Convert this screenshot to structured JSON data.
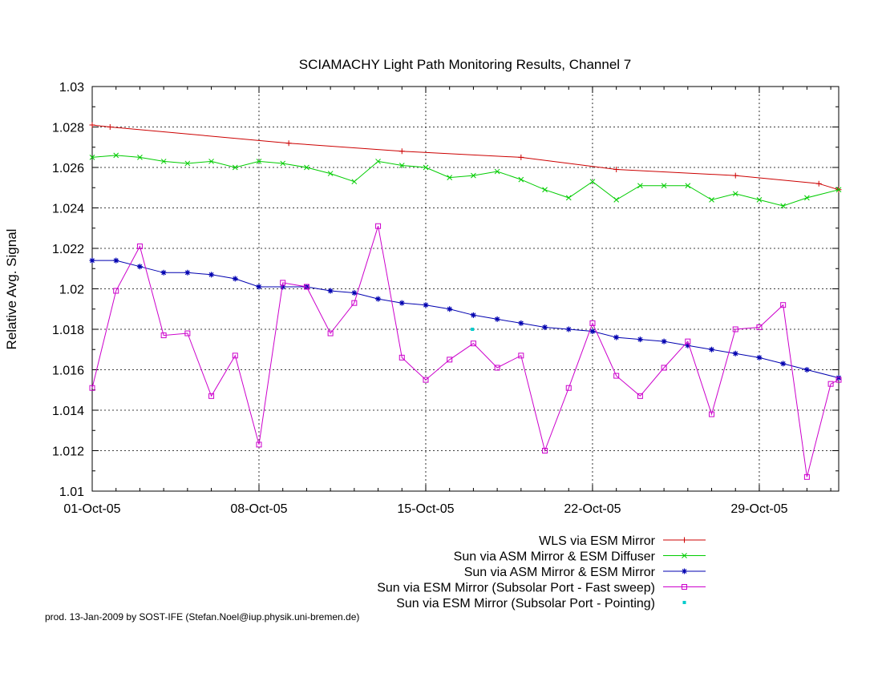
{
  "footer": "prod. 13-Jan-2009 by SOST-IFE (Stefan.Noel@iup.physik.uni-bremen.de)",
  "chart_data": {
    "type": "line",
    "title": "SCIAMACHY Light Path Monitoring Results, Channel 7",
    "xlabel": "",
    "ylabel": "Relative Avg. Signal",
    "xlim": [
      "2005-10-01",
      "2005-11-01 08:00"
    ],
    "ylim": [
      1.01,
      1.03
    ],
    "yticks": [
      1.01,
      1.012,
      1.014,
      1.016,
      1.018,
      1.02,
      1.022,
      1.024,
      1.026,
      1.028,
      1.03
    ],
    "ytick_labels": [
      "1.01",
      "1.012",
      "1.014",
      "1.016",
      "1.018",
      "1.02",
      "1.022",
      "1.024",
      "1.026",
      "1.028",
      "1.03"
    ],
    "xticks": [
      "2005-10-01",
      "2005-10-08",
      "2005-10-15",
      "2005-10-22",
      "2005-10-29"
    ],
    "xtick_labels": [
      "01-Oct-05",
      "08-Oct-05",
      "15-Oct-05",
      "22-Oct-05",
      "29-Oct-05"
    ],
    "grid": true,
    "legend_position": "below-right",
    "series": [
      {
        "name": "WLS via ESM Mirror",
        "color": "#cc0000",
        "marker": "plus",
        "x": [
          "2005-10-01",
          "2005-10-01 18:00",
          "2005-10-09 06:00",
          "2005-10-14 00:00",
          "2005-10-19 00:00",
          "2005-10-23 00:00",
          "2005-10-28 00:00",
          "2005-10-31 12:00",
          "2005-11-01 08:00"
        ],
        "values": [
          1.0281,
          1.028,
          1.0272,
          1.0268,
          1.0265,
          1.0259,
          1.0256,
          1.0252,
          1.0249
        ]
      },
      {
        "name": "Sun via ASM Mirror & ESM Diffuser",
        "color": "#00cc00",
        "marker": "x",
        "x": [
          "2005-10-01",
          "2005-10-02",
          "2005-10-03",
          "2005-10-04",
          "2005-10-05",
          "2005-10-06",
          "2005-10-07",
          "2005-10-08",
          "2005-10-09",
          "2005-10-10",
          "2005-10-11",
          "2005-10-12",
          "2005-10-13",
          "2005-10-14",
          "2005-10-15",
          "2005-10-16",
          "2005-10-17",
          "2005-10-18",
          "2005-10-19",
          "2005-10-20",
          "2005-10-21",
          "2005-10-22",
          "2005-10-23",
          "2005-10-24",
          "2005-10-25",
          "2005-10-26",
          "2005-10-27",
          "2005-10-28",
          "2005-10-29",
          "2005-10-30",
          "2005-10-31",
          "2005-11-01 08:00"
        ],
        "values": [
          1.0265,
          1.0266,
          1.0265,
          1.0263,
          1.0262,
          1.0263,
          1.026,
          1.0263,
          1.0262,
          1.026,
          1.0257,
          1.0253,
          1.0263,
          1.0261,
          1.026,
          1.0255,
          1.0256,
          1.0258,
          1.0254,
          1.0249,
          1.0245,
          1.0253,
          1.0244,
          1.0251,
          1.0251,
          1.0251,
          1.0244,
          1.0247,
          1.0244,
          1.0241,
          1.0245,
          1.0249
        ]
      },
      {
        "name": "Sun via ASM Mirror & ESM Mirror",
        "color": "#0000b0",
        "marker": "star",
        "x": [
          "2005-10-01",
          "2005-10-02",
          "2005-10-03",
          "2005-10-04",
          "2005-10-05",
          "2005-10-06",
          "2005-10-07",
          "2005-10-08",
          "2005-10-09",
          "2005-10-10",
          "2005-10-11",
          "2005-10-12",
          "2005-10-13",
          "2005-10-14",
          "2005-10-15",
          "2005-10-16",
          "2005-10-17",
          "2005-10-18",
          "2005-10-19",
          "2005-10-20",
          "2005-10-21",
          "2005-10-22",
          "2005-10-23",
          "2005-10-24",
          "2005-10-25",
          "2005-10-26",
          "2005-10-27",
          "2005-10-28",
          "2005-10-29",
          "2005-10-30",
          "2005-10-31",
          "2005-11-01 08:00"
        ],
        "values": [
          1.0214,
          1.0214,
          1.0211,
          1.0208,
          1.0208,
          1.0207,
          1.0205,
          1.0201,
          1.0201,
          1.0201,
          1.0199,
          1.0198,
          1.0195,
          1.0193,
          1.0192,
          1.019,
          1.0187,
          1.0185,
          1.0183,
          1.0181,
          1.018,
          1.0179,
          1.0176,
          1.0175,
          1.0174,
          1.0172,
          1.017,
          1.0168,
          1.0166,
          1.0163,
          1.016,
          1.0156
        ]
      },
      {
        "name": "Sun via ESM Mirror (Subsolar Port - Fast sweep)",
        "color": "#cc00cc",
        "marker": "square",
        "x": [
          "2005-10-01",
          "2005-10-02",
          "2005-10-03",
          "2005-10-04",
          "2005-10-05",
          "2005-10-06",
          "2005-10-07",
          "2005-10-08",
          "2005-10-09",
          "2005-10-10",
          "2005-10-11",
          "2005-10-12",
          "2005-10-13",
          "2005-10-14",
          "2005-10-15",
          "2005-10-16",
          "2005-10-17",
          "2005-10-18",
          "2005-10-19",
          "2005-10-20",
          "2005-10-21",
          "2005-10-22",
          "2005-10-23",
          "2005-10-24",
          "2005-10-25",
          "2005-10-26",
          "2005-10-27",
          "2005-10-28",
          "2005-10-29",
          "2005-10-30",
          "2005-10-31",
          "2005-11-01",
          "2005-11-01 08:00"
        ],
        "values": [
          1.0151,
          1.0199,
          1.0221,
          1.0177,
          1.0178,
          1.0147,
          1.0167,
          1.0123,
          1.0203,
          1.0201,
          1.0178,
          1.0193,
          1.0231,
          1.0166,
          1.0155,
          1.0165,
          1.0173,
          1.0161,
          1.0167,
          1.012,
          1.0151,
          1.0183,
          1.0157,
          1.0147,
          1.0161,
          1.0174,
          1.0138,
          1.018,
          1.0181,
          1.0192,
          1.0107,
          1.0153,
          1.0155
        ]
      },
      {
        "name": "Sun via ESM Mirror (Subsolar Port - Pointing)",
        "color": "#00cccc",
        "marker": "dot",
        "x": [
          "2005-10-16 23:00"
        ],
        "values": [
          1.018
        ]
      }
    ]
  }
}
